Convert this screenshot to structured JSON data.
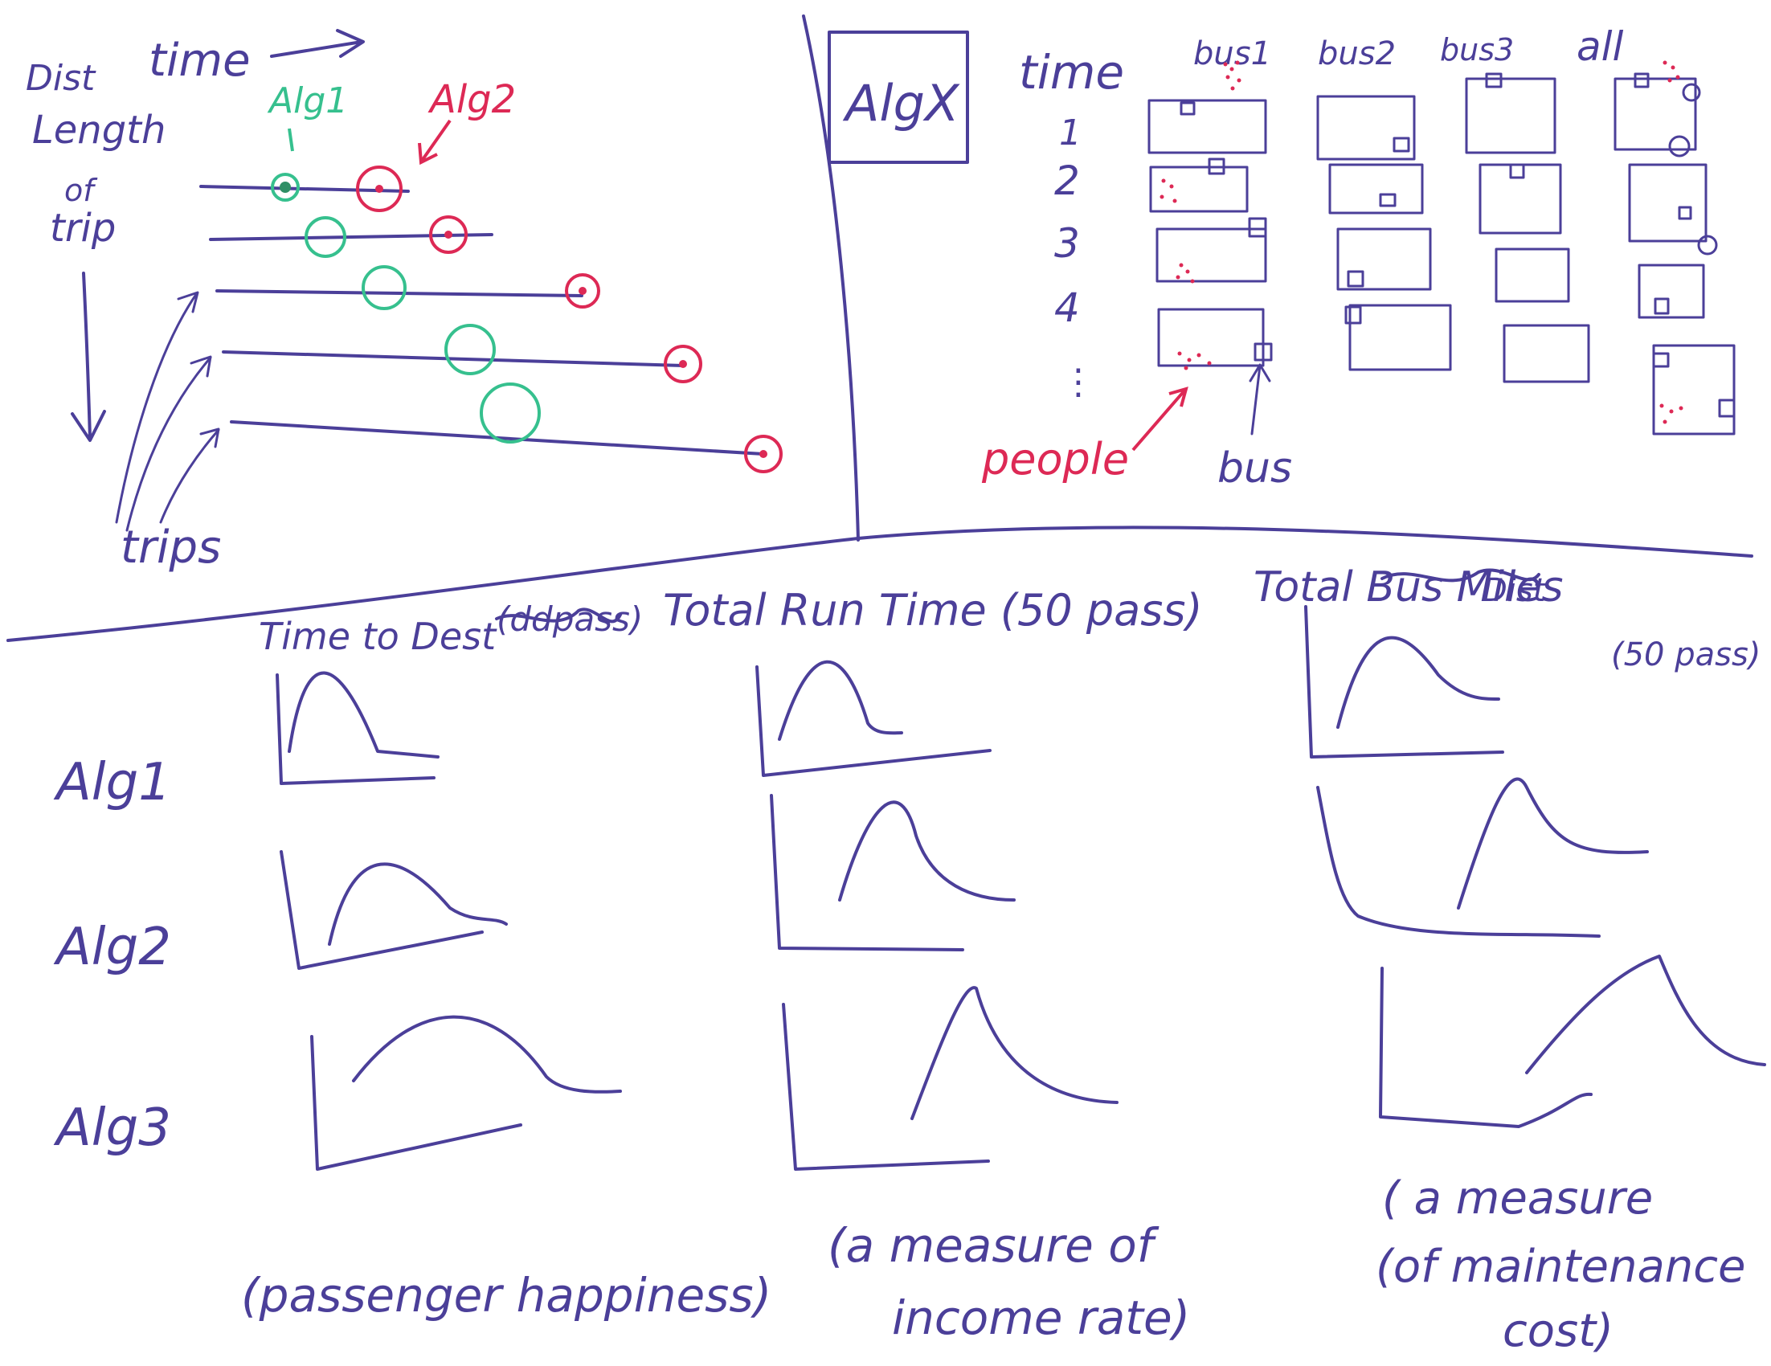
{
  "colors": {
    "ink_blue": "#4b3f99",
    "marker_green": "#36c08e",
    "marker_red": "#dd2955",
    "paper": "#ffffff"
  },
  "trip_sketch": {
    "labels": {
      "dist": "Dist",
      "length": "Length",
      "of": "of",
      "trip": "trip",
      "time": "time",
      "alg1": "Alg1",
      "alg2": "Alg2",
      "trips": "trips"
    },
    "trip_count": 5
  },
  "algx_panel": {
    "title": "AlgX",
    "time_header": "time",
    "time_steps": [
      "1",
      "2",
      "3",
      "4",
      "⋮"
    ],
    "columns": [
      "bus1",
      "bus2",
      "bus3",
      "all"
    ],
    "people_label": "people",
    "bus_label": "bus"
  },
  "metrics": {
    "headers": [
      "Time to Dest",
      "Total Run Time (50 pass)",
      "Total Bus Miles"
    ],
    "header_crossed_out": [
      "(ddpass)",
      "Dist"
    ],
    "sub_header": "(50 pass)",
    "algorithms": [
      "Alg1",
      "Alg2",
      "Alg3"
    ],
    "footnotes": [
      [
        "(passenger happiness)"
      ],
      [
        "(a measure of",
        "income rate)"
      ],
      [
        "( a  measure",
        "(of  maintenance",
        "cost)"
      ]
    ]
  }
}
